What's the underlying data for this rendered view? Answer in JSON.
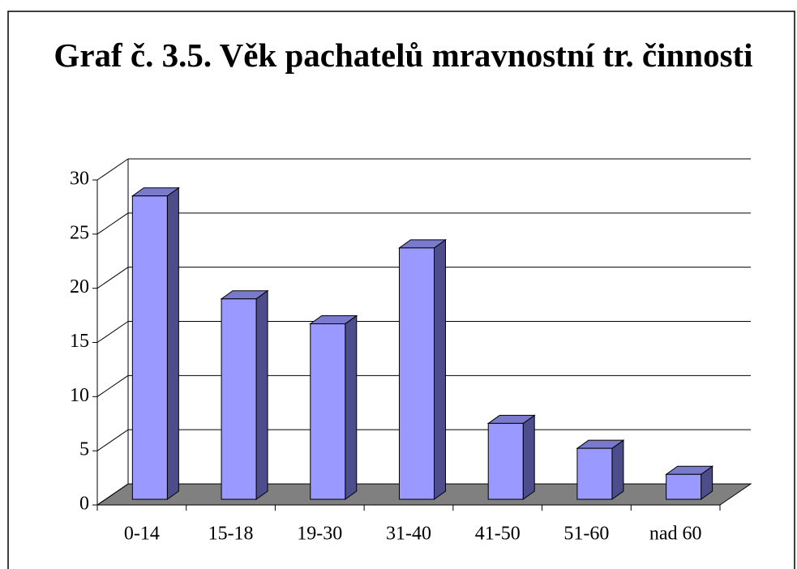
{
  "chart_data": {
    "type": "bar",
    "title": "Graf č. 3.5. Věk pachatelů mravnostní tr. činnosti",
    "categories": [
      "0-14",
      "15-18",
      "19-30",
      "31-40",
      "41-50",
      "51-60",
      "nad 60"
    ],
    "values": [
      28,
      18.5,
      16.2,
      23.2,
      7,
      4.7,
      2.3
    ],
    "color": "#9999ff",
    "ylim": [
      0,
      30
    ],
    "yticks": [
      0,
      5,
      10,
      15,
      20,
      25,
      30
    ],
    "grid": true
  }
}
